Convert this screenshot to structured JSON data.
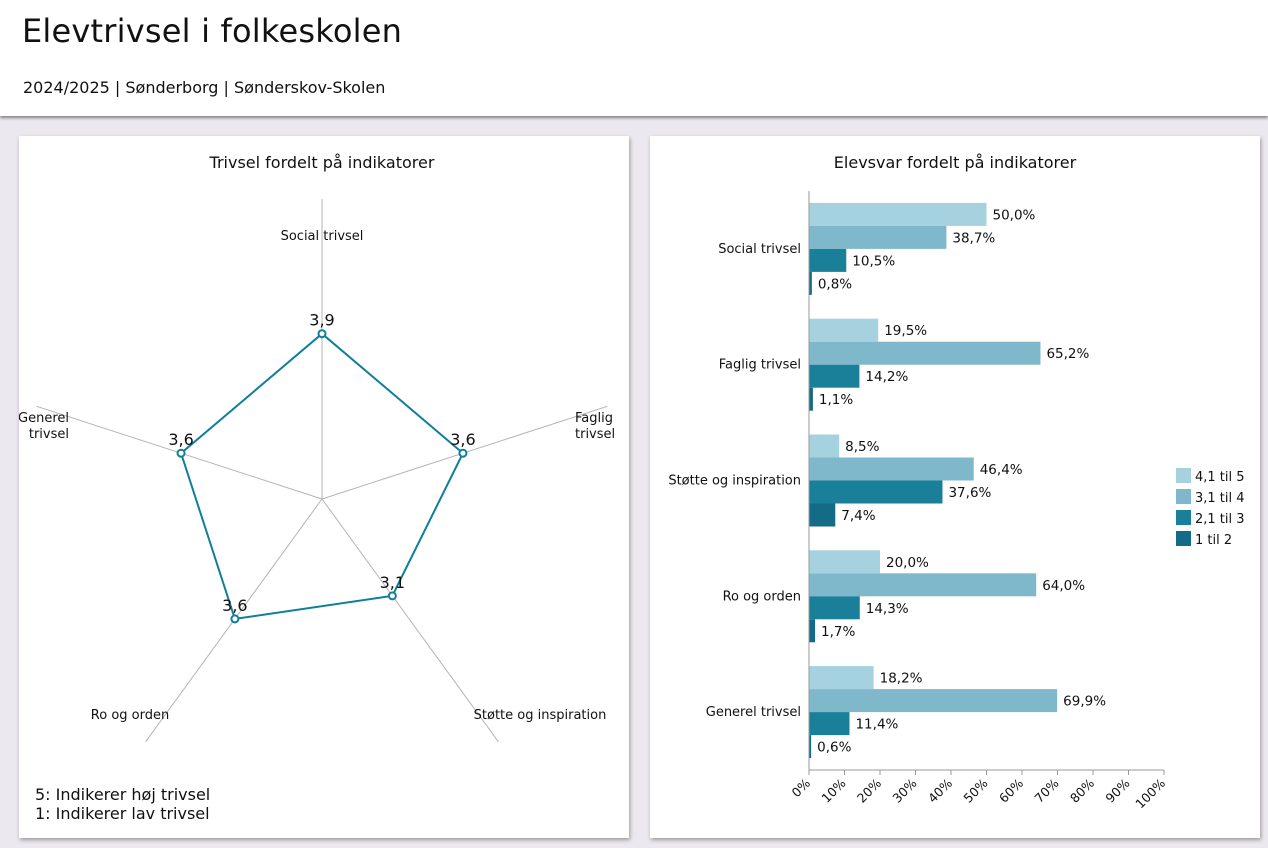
{
  "header": {
    "title": "Elevtrivsel i folkeskolen",
    "subtitle": "2024/2025 | Sønderborg | Sønderskov-Skolen"
  },
  "notes": {
    "high": "5: Indikerer høj trivsel",
    "low": "1: Indikerer lav trivsel"
  },
  "colors": {
    "radar_line": "#0f7f99",
    "axis": "#b4b4b4",
    "series": [
      "#a6d1de",
      "#7fb8cb",
      "#1a7f99",
      "#136b85"
    ]
  },
  "chart_data": [
    {
      "type": "radar",
      "title": "Trivsel fordelt på indikatorer",
      "axes": [
        "Social trivsel",
        "Faglig trivsel",
        "Støtte og inspiration",
        "Ro og orden",
        "Generel trivsel"
      ],
      "axis_labels": [
        [
          "Social trivsel"
        ],
        [
          "Faglig",
          "trivsel"
        ],
        [
          "Støtte og inspiration"
        ],
        [
          "Ro og orden"
        ],
        [
          "Generel",
          "trivsel"
        ]
      ],
      "values": [
        3.9,
        3.6,
        3.1,
        3.6,
        3.6
      ],
      "value_labels": [
        "3,9",
        "3,6",
        "3,1",
        "3,6",
        "3,6"
      ],
      "range": [
        1,
        5
      ]
    },
    {
      "type": "bar",
      "orientation": "horizontal",
      "title": "Elevsvar fordelt på indikatorer",
      "categories": [
        "Social trivsel",
        "Faglig trivsel",
        "Støtte og inspiration",
        "Ro og orden",
        "Generel trivsel"
      ],
      "series": [
        {
          "name": "4,1 til 5",
          "values": [
            50.0,
            19.5,
            8.5,
            20.0,
            18.2
          ],
          "labels": [
            "50,0%",
            "19,5%",
            "8,5%",
            "20,0%",
            "18,2%"
          ]
        },
        {
          "name": "3,1 til 4",
          "values": [
            38.7,
            65.2,
            46.4,
            64.0,
            69.9
          ],
          "labels": [
            "38,7%",
            "65,2%",
            "46,4%",
            "64,0%",
            "69,9%"
          ]
        },
        {
          "name": "2,1 til 3",
          "values": [
            10.5,
            14.2,
            37.6,
            14.3,
            11.4
          ],
          "labels": [
            "10,5%",
            "14,2%",
            "37,6%",
            "14,3%",
            "11,4%"
          ]
        },
        {
          "name": "1 til 2",
          "values": [
            0.8,
            1.1,
            7.4,
            1.7,
            0.6
          ],
          "labels": [
            "0,8%",
            "1,1%",
            "7,4%",
            "1,7%",
            "0,6%"
          ]
        }
      ],
      "xlim": [
        0,
        100
      ],
      "x_ticks": [
        "0%",
        "10%",
        "20%",
        "30%",
        "40%",
        "50%",
        "60%",
        "70%",
        "80%",
        "90%",
        "100%"
      ],
      "legend": "right",
      "grid": false
    }
  ]
}
